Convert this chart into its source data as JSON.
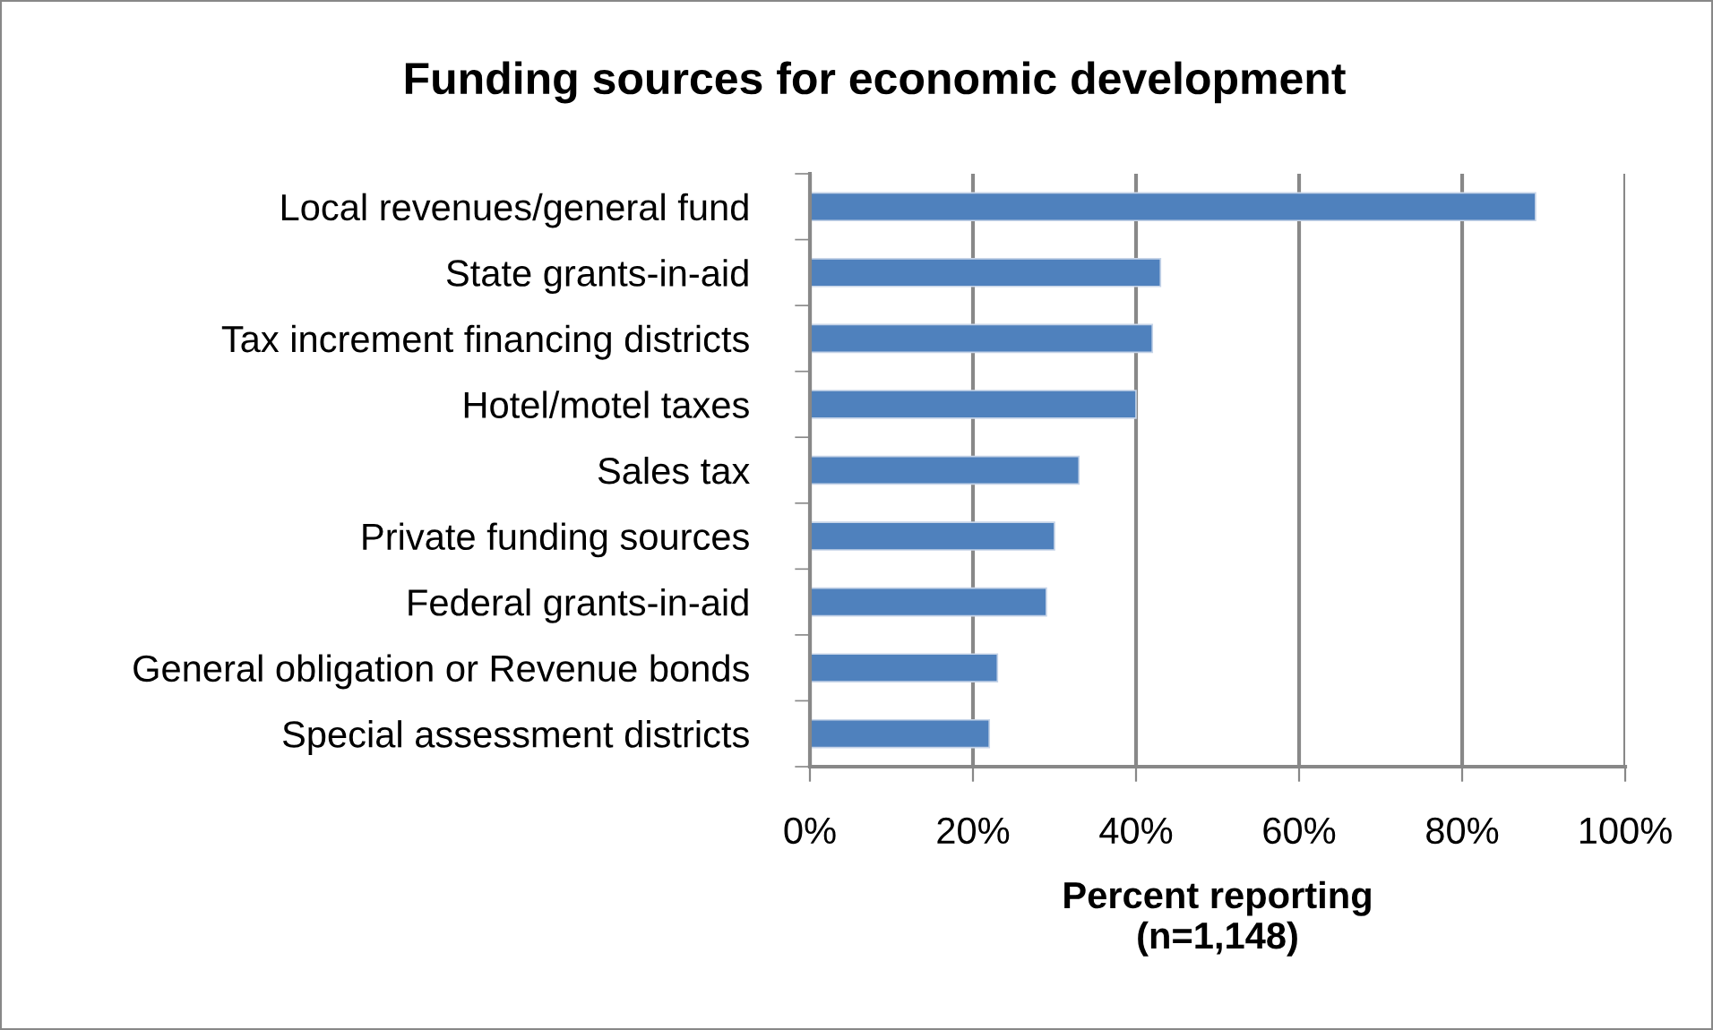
{
  "chart_data": {
    "type": "bar",
    "orientation": "horizontal",
    "title": "Funding sources for economic development",
    "xlabel": "Percent reporting\n(n=1,148)",
    "categories": [
      "Local revenues/general fund",
      "State grants-in-aid",
      "Tax increment financing districts",
      "Hotel/motel taxes",
      "Sales tax",
      "Private funding sources",
      "Federal grants-in-aid",
      "General obligation or Revenue bonds",
      "Special assessment districts"
    ],
    "values": [
      89,
      43,
      42,
      40,
      33,
      30,
      29,
      23,
      22
    ],
    "color": "#4f81bd",
    "xlim": [
      0,
      100
    ],
    "xticks": [
      {
        "value": 0,
        "label": "0%"
      },
      {
        "value": 20,
        "label": "20%"
      },
      {
        "value": 40,
        "label": "40%"
      },
      {
        "value": 60,
        "label": "60%"
      },
      {
        "value": 80,
        "label": "80%"
      },
      {
        "value": 100,
        "label": "100%"
      }
    ],
    "grid": "x",
    "legend": false
  }
}
